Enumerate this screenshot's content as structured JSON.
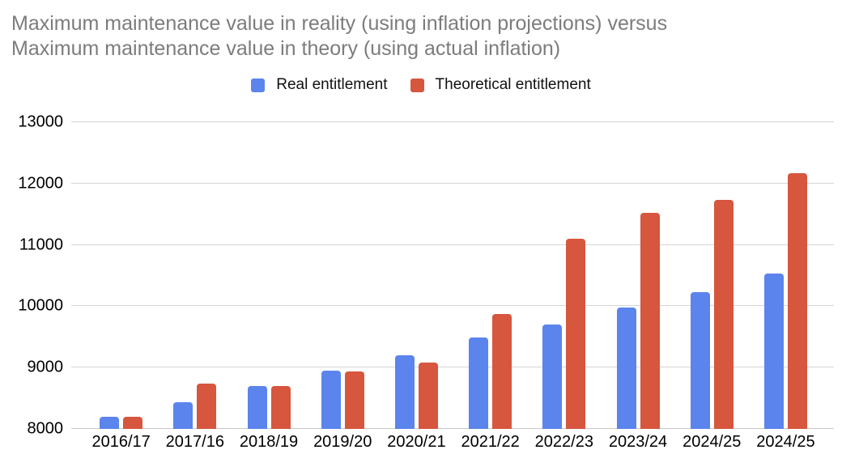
{
  "title": {
    "line1": "Maximum maintenance value in reality (using inflation projections) versus",
    "line2": "Maximum maintenance value in theory (using actual inflation)"
  },
  "chart_data": {
    "type": "bar",
    "title": "Maximum maintenance value in reality (using inflation projections) versus Maximum maintenance value in theory (using actual inflation)",
    "categories": [
      "2016/17",
      "2017/16",
      "2018/19",
      "2019/20",
      "2020/21",
      "2021/22",
      "2022/23",
      "2023/24",
      "2024/25",
      "2024/25"
    ],
    "series": [
      {
        "name": "Real entitlement",
        "color": "#5B84EC",
        "values": [
          8200,
          8430,
          8700,
          8944,
          9203,
          9488,
          9706,
          9978,
          10227,
          10530
        ]
      },
      {
        "name": "Theoretical entitlement",
        "color": "#D6563E",
        "values": [
          8200,
          8740,
          8700,
          8940,
          9080,
          9870,
          11100,
          11520,
          11740,
          12170
        ]
      }
    ],
    "xlabel": "",
    "ylabel": "",
    "ylim": [
      8000,
      13000
    ],
    "yticks": [
      8000,
      9000,
      10000,
      11000,
      12000,
      13000
    ],
    "grid": true,
    "legend_position": "top"
  },
  "colors": {
    "title_text": "#7C7C7C",
    "axis_text": "#000000",
    "gridline": "#D5D5D5",
    "background": "#FFFFFF"
  }
}
